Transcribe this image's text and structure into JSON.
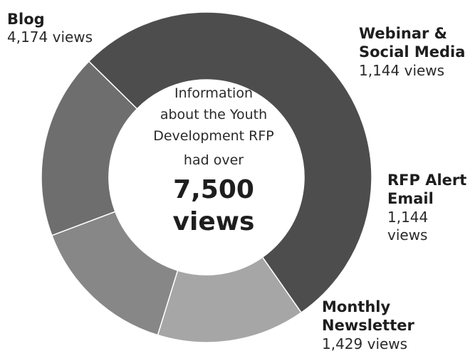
{
  "chart_data": {
    "type": "pie",
    "style": "donut",
    "slices": [
      {
        "label_lines": [
          "Blog"
        ],
        "value": 4174,
        "value_label": "4,174 views",
        "color": "#4d4d4d"
      },
      {
        "label_lines": [
          "Webinar &",
          "Social Media"
        ],
        "value": 1144,
        "value_label": "1,144 views",
        "color": "#a6a6a6"
      },
      {
        "label_lines": [
          "RFP Alert",
          "Email"
        ],
        "value": 1144,
        "value_label": "1,144 views",
        "color": "#878787"
      },
      {
        "label_lines": [
          "Monthly",
          "Newsletter"
        ],
        "value": 1429,
        "value_label": "1,429 views",
        "color": "#6e6e6e"
      }
    ],
    "center_text": {
      "lines": [
        "Information",
        "about the Youth",
        "Development RFP",
        "had over"
      ],
      "big_lines": [
        "7,500",
        "views"
      ]
    }
  }
}
